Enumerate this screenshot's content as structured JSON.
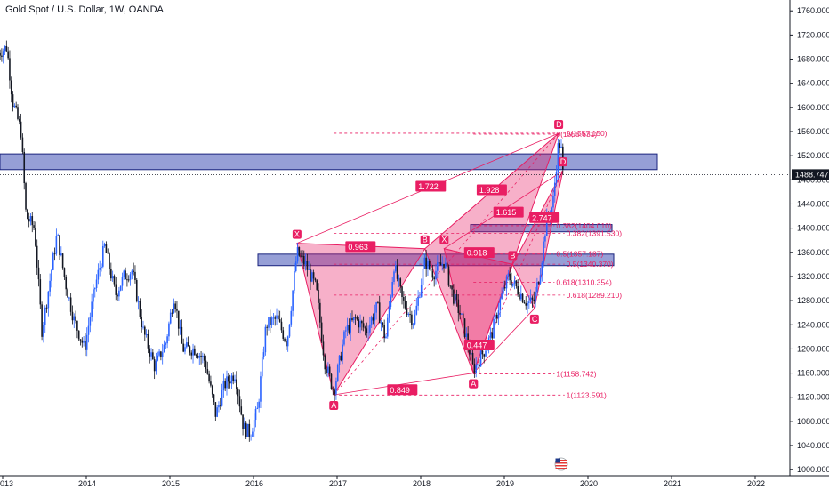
{
  "header": {
    "title": "Gold Spot / U.S. Dollar, 1W, OANDA"
  },
  "price_label": "1488.747",
  "chart_data": {
    "type": "candlestick",
    "symbol": "Gold Spot / U.S. Dollar",
    "interval": "1W",
    "source": "OANDA",
    "last_price": 1488.747,
    "ylim": [
      990,
      1778
    ],
    "y_ticks": [
      1000,
      1040,
      1080,
      1120,
      1160,
      1200,
      1240,
      1280,
      1320,
      1360,
      1400,
      1440,
      1480,
      1520,
      1560,
      1600,
      1640,
      1680,
      1720,
      1760
    ],
    "y_tick_labels": [
      "1000.000",
      "1040.000",
      "1080.000",
      "1120.000",
      "1160.000",
      "1200.000",
      "1240.000",
      "1280.000",
      "1320.000",
      "1360.000",
      "1400.000",
      "1440.000",
      "1480.000",
      "1520.000",
      "1560.000",
      "1600.000",
      "1640.000",
      "1680.000",
      "1720.000",
      "1760.000"
    ],
    "x_ticks": [
      {
        "year": 2013.0,
        "label": "013"
      },
      {
        "year": 2014.0,
        "label": "2014"
      },
      {
        "year": 2015.0,
        "label": "2015"
      },
      {
        "year": 2016.0,
        "label": "2016"
      },
      {
        "year": 2017.0,
        "label": "2017"
      },
      {
        "year": 2018.0,
        "label": "2018"
      },
      {
        "year": 2019.0,
        "label": "2019"
      },
      {
        "year": 2020.0,
        "label": "2020"
      },
      {
        "year": 2021.0,
        "label": "2021"
      },
      {
        "year": 2022.0,
        "label": "2022"
      }
    ],
    "price_path": [
      [
        2012.95,
        1690
      ],
      [
        2013.05,
        1700
      ],
      [
        2013.12,
        1610
      ],
      [
        2013.22,
        1560
      ],
      [
        2013.28,
        1420
      ],
      [
        2013.38,
        1400
      ],
      [
        2013.47,
        1230
      ],
      [
        2013.55,
        1300
      ],
      [
        2013.65,
        1390
      ],
      [
        2013.75,
        1310
      ],
      [
        2013.85,
        1250
      ],
      [
        2013.98,
        1200
      ],
      [
        2014.1,
        1300
      ],
      [
        2014.22,
        1370
      ],
      [
        2014.35,
        1290
      ],
      [
        2014.45,
        1320
      ],
      [
        2014.55,
        1330
      ],
      [
        2014.68,
        1230
      ],
      [
        2014.82,
        1170
      ],
      [
        2014.95,
        1210
      ],
      [
        2015.05,
        1290
      ],
      [
        2015.15,
        1200
      ],
      [
        2015.3,
        1200
      ],
      [
        2015.42,
        1180
      ],
      [
        2015.55,
        1090
      ],
      [
        2015.65,
        1140
      ],
      [
        2015.78,
        1160
      ],
      [
        2015.88,
        1070
      ],
      [
        2015.96,
        1060
      ],
      [
        2016.05,
        1100
      ],
      [
        2016.15,
        1240
      ],
      [
        2016.28,
        1250
      ],
      [
        2016.4,
        1210
      ],
      [
        2016.52,
        1360
      ],
      [
        2016.62,
        1340
      ],
      [
        2016.75,
        1300
      ],
      [
        2016.85,
        1180
      ],
      [
        2016.96,
        1130
      ],
      [
        2017.1,
        1230
      ],
      [
        2017.22,
        1250
      ],
      [
        2017.35,
        1230
      ],
      [
        2017.48,
        1270
      ],
      [
        2017.58,
        1215
      ],
      [
        2017.68,
        1340
      ],
      [
        2017.78,
        1280
      ],
      [
        2017.92,
        1245
      ],
      [
        2018.05,
        1345
      ],
      [
        2018.15,
        1325
      ],
      [
        2018.28,
        1345
      ],
      [
        2018.38,
        1290
      ],
      [
        2018.48,
        1255
      ],
      [
        2018.58,
        1200
      ],
      [
        2018.63,
        1165
      ],
      [
        2018.75,
        1195
      ],
      [
        2018.85,
        1225
      ],
      [
        2018.95,
        1280
      ],
      [
        2019.05,
        1320
      ],
      [
        2019.15,
        1300
      ],
      [
        2019.28,
        1275
      ],
      [
        2019.36,
        1280
      ],
      [
        2019.44,
        1340
      ],
      [
        2019.5,
        1410
      ],
      [
        2019.58,
        1440
      ],
      [
        2019.62,
        1500
      ],
      [
        2019.65,
        1545
      ],
      [
        2019.68,
        1530
      ],
      [
        2019.7,
        1490
      ]
    ],
    "zones": [
      {
        "top": 1523,
        "bottom": 1497
      },
      {
        "top": 1406,
        "bottom": 1394
      },
      {
        "top": 1357,
        "bottom": 1338
      }
    ],
    "harmonic_patterns": [
      {
        "name": "pattern-1",
        "points": [
          {
            "label": "X",
            "year": 2016.52,
            "price": 1375
          },
          {
            "label": "A",
            "year": 2016.96,
            "price": 1124
          },
          {
            "label": "B",
            "year": 2018.05,
            "price": 1366
          },
          {
            "label": "C",
            "year": 2018.63,
            "price": 1160
          },
          {
            "label": "D",
            "year": 2019.65,
            "price": 1557
          }
        ]
      },
      {
        "name": "pattern-2",
        "points": [
          {
            "label": "X",
            "year": 2018.28,
            "price": 1366
          },
          {
            "label": "A",
            "year": 2018.63,
            "price": 1160
          },
          {
            "label": "B",
            "year": 2019.1,
            "price": 1340
          },
          {
            "label": "C",
            "year": 2019.36,
            "price": 1267
          },
          {
            "label": "D",
            "year": 2019.7,
            "price": 1495
          }
        ]
      }
    ],
    "ratio_labels": [
      {
        "text": "1.722",
        "year": 2018.12,
        "price": 1468
      },
      {
        "text": "1.928",
        "year": 2018.85,
        "price": 1462
      },
      {
        "text": "1.615",
        "year": 2019.05,
        "price": 1425
      },
      {
        "text": "2.747",
        "year": 2019.48,
        "price": 1416
      },
      {
        "text": "0.963",
        "year": 2017.28,
        "price": 1368
      },
      {
        "text": "0.918",
        "year": 2018.7,
        "price": 1358
      },
      {
        "text": "0.447",
        "year": 2018.7,
        "price": 1205
      },
      {
        "text": "0.849",
        "year": 2017.78,
        "price": 1131
      }
    ],
    "fib_levels": [
      {
        "label": "0(1557.150)",
        "price": 1557.15,
        "from": 2016.96,
        "to": 2019.72
      },
      {
        "label": "0.382(1391.530)",
        "price": 1391.53,
        "from": 2016.96,
        "to": 2019.72
      },
      {
        "label": "0.5(1340.370)",
        "price": 1340.37,
        "from": 2016.96,
        "to": 2019.72
      },
      {
        "label": "0.618(1289.210)",
        "price": 1289.21,
        "from": 2016.96,
        "to": 2019.72
      },
      {
        "label": "1(1123.591)",
        "price": 1123.59,
        "from": 2016.96,
        "to": 2019.72
      },
      {
        "label": "0(1555.631)",
        "price": 1555.63,
        "from": 2018.63,
        "to": 2019.6
      },
      {
        "label": "0.382(1404.010)",
        "price": 1404.01,
        "from": 2018.63,
        "to": 2019.6
      },
      {
        "label": "0.5(1357.187)",
        "price": 1357.19,
        "from": 2018.63,
        "to": 2019.6
      },
      {
        "label": "0.618(1310.354)",
        "price": 1310.35,
        "from": 2018.63,
        "to": 2019.6
      },
      {
        "label": "1(1158.742)",
        "price": 1158.74,
        "from": 2018.63,
        "to": 2019.6
      }
    ]
  },
  "colors": {
    "up": "#2962ff",
    "down": "#131722",
    "pattern": "#e91e63",
    "pattern_fill": "#e91e63",
    "zone_fill": "#3f51b5",
    "price_tag_bg": "#131722"
  },
  "icons": {
    "flag": "us-flag-icon"
  }
}
